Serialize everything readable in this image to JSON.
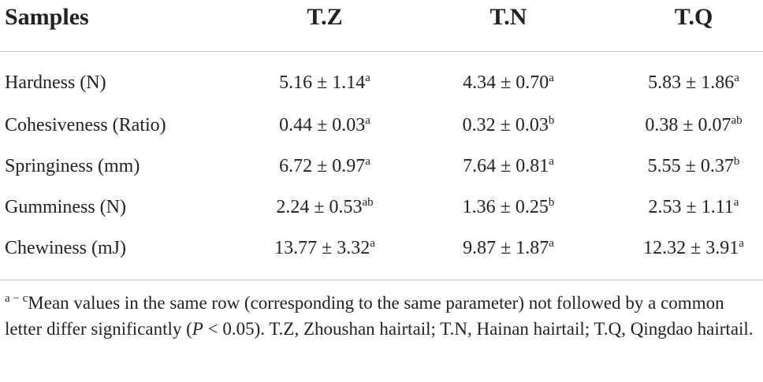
{
  "table": {
    "header": [
      "Samples",
      "T.Z",
      "T.N",
      "T.Q"
    ],
    "rows": [
      {
        "label": "Hardness (N)",
        "cells": [
          {
            "value": "5.16 ± 1.14",
            "sup": "a"
          },
          {
            "value": "4.34 ± 0.70",
            "sup": "a"
          },
          {
            "value": "5.83 ± 1.86",
            "sup": "a"
          }
        ]
      },
      {
        "label": "Cohesiveness (Ratio)",
        "cells": [
          {
            "value": "0.44 ± 0.03",
            "sup": "a"
          },
          {
            "value": "0.32 ± 0.03",
            "sup": "b"
          },
          {
            "value": "0.38 ± 0.07",
            "sup": "ab"
          }
        ]
      },
      {
        "label": "Springiness (mm)",
        "cells": [
          {
            "value": "6.72 ± 0.97",
            "sup": "a"
          },
          {
            "value": "7.64 ± 0.81",
            "sup": "a"
          },
          {
            "value": "5.55 ± 0.37",
            "sup": "b"
          }
        ]
      },
      {
        "label": "Gumminess (N)",
        "cells": [
          {
            "value": "2.24 ± 0.53",
            "sup": "ab"
          },
          {
            "value": "1.36 ± 0.25",
            "sup": "b"
          },
          {
            "value": "2.53 ± 1.11",
            "sup": "a"
          }
        ]
      },
      {
        "label": "Chewiness (mJ)",
        "cells": [
          {
            "value": "13.77 ± 3.32",
            "sup": "a"
          },
          {
            "value": "9.87 ± 1.87",
            "sup": "a"
          },
          {
            "value": "12.32 ± 3.91",
            "sup": "a"
          }
        ]
      }
    ]
  },
  "footnote": {
    "sup": "a − c",
    "text": "Mean values in the same row (corresponding to the same parameter) not followed by a common letter differ significantly (",
    "italic": "P",
    "rest": " < 0.05). T.Z, Zhoushan hairtail; T.N, Hainan hairtail; T.Q, Qingdao hairtail."
  }
}
